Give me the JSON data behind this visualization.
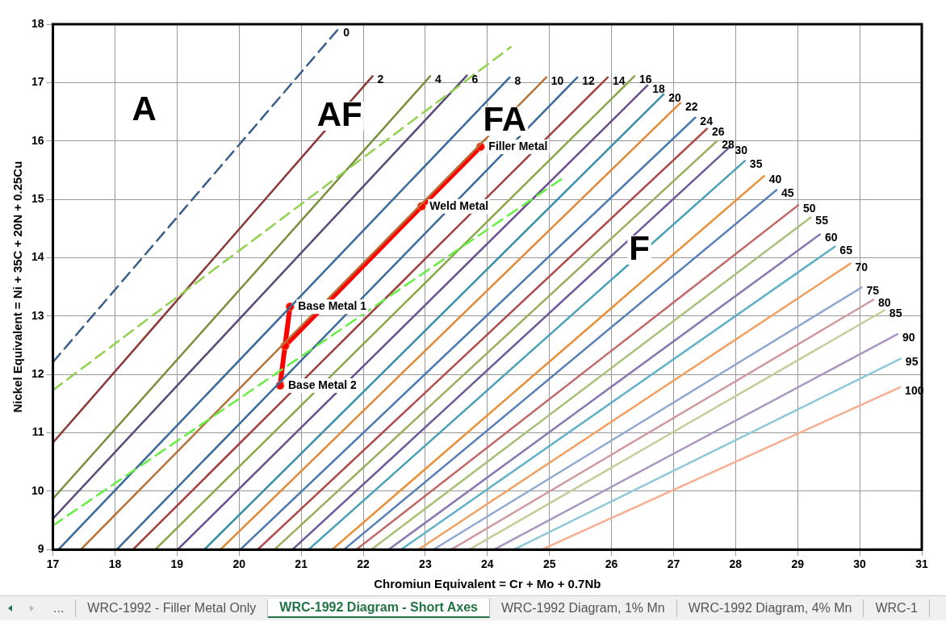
{
  "chart_data": {
    "type": "line",
    "xlabel": "Chromiun Equivalent = Cr + Mo + 0.7Nb",
    "ylabel": "Nickel Equivalent = Ni + 35C + 20N + 0.25Cu",
    "xlim": [
      17,
      31
    ],
    "xticks": [
      17,
      18,
      19,
      20,
      21,
      22,
      23,
      24,
      25,
      26,
      27,
      28,
      29,
      30,
      31
    ],
    "ylim": [
      9,
      18
    ],
    "yticks": [
      9,
      10,
      11,
      12,
      13,
      14,
      15,
      16,
      17,
      18
    ],
    "grid": true,
    "legend": false,
    "series": [
      {
        "name": "0",
        "color": "#3a5f8a",
        "line_style": "dashed",
        "x": [
          17,
          21.6
        ],
        "values": [
          12.21,
          17.92
        ]
      },
      {
        "color": "#92d050",
        "line_style": "dashed",
        "x": [
          17,
          24.38
        ],
        "values": [
          11.73,
          17.61
        ]
      },
      {
        "color": "#66ee44",
        "line_style": "dashed",
        "x": [
          17,
          25.2
        ],
        "values": [
          9.41,
          15.35
        ]
      },
      {
        "name": "2",
        "color": "#8b3a3a",
        "x": [
          17,
          22.15
        ],
        "values": [
          10.83,
          17.11
        ]
      },
      {
        "name": "4",
        "color": "#7a8f3e",
        "x": [
          17,
          23.08
        ],
        "values": [
          9.87,
          17.11
        ]
      },
      {
        "name": "6",
        "color": "#5a4a7a",
        "x": [
          17,
          23.67
        ],
        "values": [
          9.53,
          17.12
        ]
      },
      {
        "name": "8",
        "color": "#3a6a9a",
        "x": [
          17.09,
          24.36
        ],
        "values": [
          9,
          17.09
        ]
      },
      {
        "name": "10",
        "color": "#b5733a",
        "x": [
          17.45,
          24.95
        ],
        "values": [
          9,
          17.09
        ]
      },
      {
        "name": "12",
        "color": "#3a6a9a",
        "x": [
          18.03,
          25.45
        ],
        "values": [
          9,
          17.09
        ]
      },
      {
        "name": "14",
        "color": "#a04040",
        "x": [
          18.29,
          25.94
        ],
        "values": [
          9,
          17.09
        ]
      },
      {
        "name": "16",
        "color": "#8aa84a",
        "x": [
          18.65,
          26.37
        ],
        "values": [
          9,
          17.11
        ]
      },
      {
        "name": "18",
        "color": "#6a4f8f",
        "x": [
          19.01,
          26.58
        ],
        "values": [
          9,
          16.95
        ]
      },
      {
        "name": "20",
        "color": "#3a8fa8",
        "x": [
          19.44,
          26.84
        ],
        "values": [
          9,
          16.8
        ]
      },
      {
        "name": "22",
        "color": "#e08a3a",
        "x": [
          19.7,
          27.11
        ],
        "values": [
          9,
          16.65
        ]
      },
      {
        "name": "24",
        "color": "#4a7ab0",
        "x": [
          20.02,
          27.35
        ],
        "values": [
          9,
          16.4
        ]
      },
      {
        "name": "26",
        "color": "#b04a4a",
        "x": [
          20.3,
          27.54
        ],
        "values": [
          9,
          16.21
        ]
      },
      {
        "name": "28",
        "color": "#9ab060",
        "x": [
          20.57,
          27.7
        ],
        "values": [
          9,
          16
        ]
      },
      {
        "name": "30",
        "color": "#6f5a9a",
        "x": [
          20.86,
          27.91
        ],
        "values": [
          9,
          15.9
        ]
      },
      {
        "name": "35",
        "color": "#4aa0b8",
        "x": [
          21.12,
          28.15
        ],
        "values": [
          9,
          15.66
        ]
      },
      {
        "name": "40",
        "color": "#e8903a",
        "x": [
          21.5,
          28.46
        ],
        "values": [
          9,
          15.4
        ]
      },
      {
        "name": "45",
        "color": "#5a80b8",
        "x": [
          21.69,
          28.66
        ],
        "values": [
          9,
          15.16
        ]
      },
      {
        "name": "50",
        "color": "#c06a6a",
        "x": [
          21.89,
          29.01
        ],
        "values": [
          9,
          14.9
        ]
      },
      {
        "name": "55",
        "color": "#a8c078",
        "x": [
          22.13,
          29.21
        ],
        "values": [
          9,
          14.69
        ]
      },
      {
        "name": "60",
        "color": "#8a78b0",
        "x": [
          22.41,
          29.36
        ],
        "values": [
          9,
          14.4
        ]
      },
      {
        "name": "65",
        "color": "#60b0c8",
        "x": [
          22.61,
          29.6
        ],
        "values": [
          9,
          14.19
        ]
      },
      {
        "name": "70",
        "color": "#f0a060",
        "x": [
          22.89,
          29.85
        ],
        "values": [
          9,
          13.9
        ]
      },
      {
        "name": "75",
        "color": "#90a8d0",
        "x": [
          23.13,
          30.03
        ],
        "values": [
          9,
          13.49
        ]
      },
      {
        "name": "80",
        "color": "#d09aa0",
        "x": [
          23.42,
          30.22
        ],
        "values": [
          9,
          13.28
        ]
      },
      {
        "name": "85",
        "color": "#c0d098",
        "x": [
          23.71,
          30.4
        ],
        "values": [
          9,
          13.1
        ]
      },
      {
        "name": "90",
        "color": "#a898c0",
        "x": [
          24.11,
          30.61
        ],
        "values": [
          9,
          12.69
        ]
      },
      {
        "name": "95",
        "color": "#90c8d8",
        "x": [
          24.43,
          30.66
        ],
        "values": [
          9,
          12.27
        ]
      },
      {
        "name": "100",
        "color": "#f4b090",
        "x": [
          24.88,
          30.65
        ],
        "values": [
          9,
          11.78
        ]
      },
      {
        "color": "#ff0000",
        "marker": "circle",
        "x": [
          20.82,
          20.74,
          20.66
        ],
        "values": [
          13.16,
          12.49,
          11.81
        ]
      },
      {
        "color": "#ff0000",
        "marker": "circle",
        "x": [
          20.74,
          22.94,
          23.89
        ],
        "values": [
          12.49,
          14.88,
          15.9
        ]
      }
    ],
    "annotations": [
      {
        "text": "Base Metal 1",
        "x": 20.82,
        "y": 13.16
      },
      {
        "text": "Base Metal 2",
        "x": 20.66,
        "y": 11.81
      },
      {
        "text": "Weld Metal",
        "x": 22.94,
        "y": 14.88
      },
      {
        "text": "Filler Metal",
        "x": 23.89,
        "y": 15.9
      },
      "A",
      "AF",
      "FA",
      "F",
      "...",
      "WRC-1992 - Filler Metal Only",
      "WRC-1992 Diagram - Short Axes",
      "WRC-1992 Diagram, 1% Mn",
      "WRC-1992 Diagram, 4% Mn",
      "WRC-1"
    ]
  }
}
